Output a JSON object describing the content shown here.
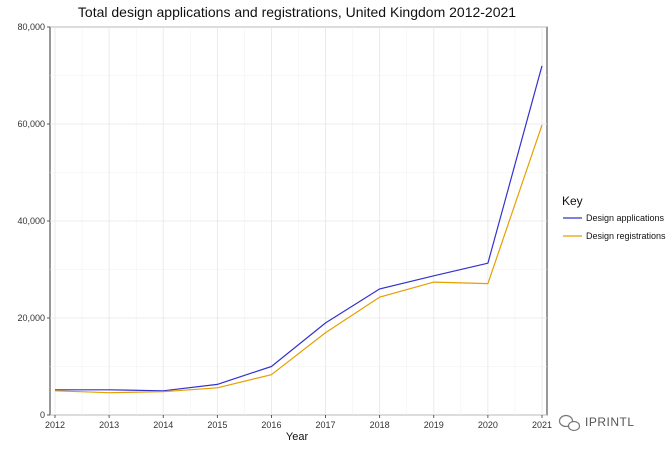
{
  "chart_data": {
    "type": "line",
    "title": "Total design applications and registrations, United Kingdom 2012-2021",
    "xlabel": "Year",
    "ylabel": "",
    "x": [
      2012,
      2013,
      2014,
      2015,
      2016,
      2017,
      2018,
      2019,
      2020,
      2021
    ],
    "ylim": [
      0,
      80000
    ],
    "yticks": [
      0,
      20000,
      40000,
      60000,
      80000
    ],
    "ytick_labels": [
      "0",
      "20,000",
      "40,000",
      "60,000",
      "80,000"
    ],
    "xtick_labels": [
      "2012",
      "2013",
      "2014",
      "2015",
      "2016",
      "2017",
      "2018",
      "2019",
      "2020",
      "2021"
    ],
    "grid": true,
    "legend": {
      "title": "Key",
      "placement": "right"
    },
    "series": [
      {
        "name": "Design applications",
        "color": "#3333cc",
        "values": [
          5200,
          5200,
          5000,
          6300,
          10000,
          19000,
          26000,
          28700,
          31300,
          72000
        ]
      },
      {
        "name": "Design registrations",
        "color": "#e69f00",
        "values": [
          5000,
          4600,
          4800,
          5600,
          8300,
          17000,
          24300,
          27400,
          27100,
          59800
        ]
      }
    ]
  },
  "watermark": {
    "text": "IPRINTL",
    "icon": "wechat-icon"
  }
}
